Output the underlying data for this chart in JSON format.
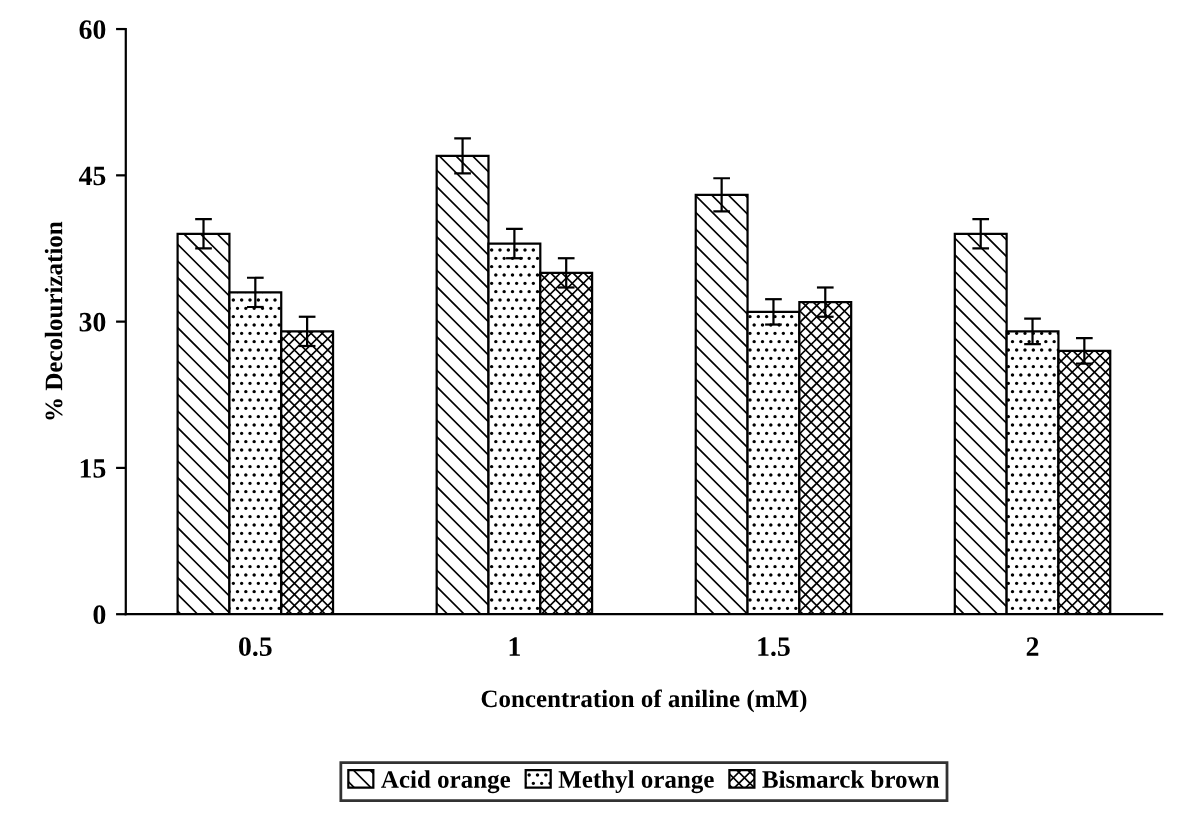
{
  "chart_data": {
    "type": "bar",
    "xlabel": "Concentration of aniline (mM)",
    "ylabel": "% Decolourization",
    "categories": [
      "0.5",
      "1",
      "1.5",
      "2"
    ],
    "series": [
      {
        "name": "Acid orange",
        "color": "#000000",
        "values": [
          39,
          47,
          43,
          39
        ],
        "errors": [
          1.5,
          1.8,
          1.7,
          1.5
        ]
      },
      {
        "name": "Methyl orange",
        "color": "#000000",
        "values": [
          33,
          38,
          31,
          29
        ],
        "errors": [
          1.5,
          1.5,
          1.3,
          1.3
        ]
      },
      {
        "name": "Bismarck brown",
        "color": "#000000",
        "values": [
          29,
          35,
          32,
          27
        ],
        "errors": [
          1.5,
          1.5,
          1.5,
          1.3
        ]
      }
    ],
    "ylim": [
      0,
      60
    ],
    "yticks": [
      0,
      15,
      30,
      45,
      60
    ],
    "grid": false,
    "legend": "bottom"
  }
}
